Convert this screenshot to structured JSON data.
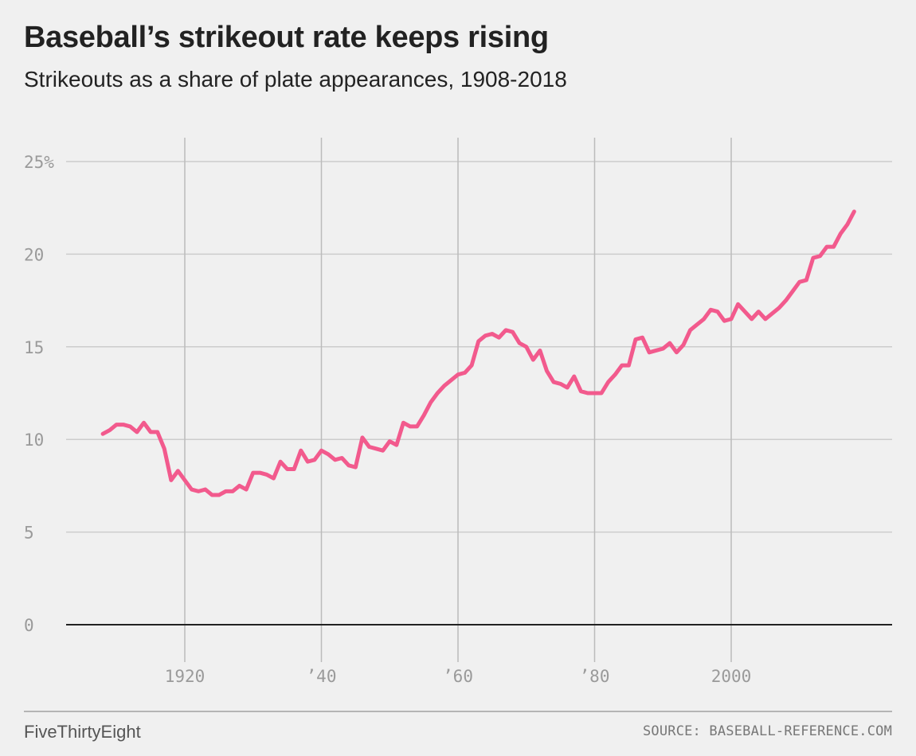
{
  "header": {
    "title": "Baseball’s strikeout rate keeps rising",
    "subtitle": "Strikeouts as a share of plate appearances, 1908-2018"
  },
  "footer": {
    "brand": "FiveThirtyEight",
    "source": "SOURCE: BASEBALL-REFERENCE.COM"
  },
  "colors": {
    "line": "#f25a8d",
    "grid": "#cccccc",
    "vgrid": "#bbbbbb",
    "zero_line": "#222222",
    "tick_text": "#9a9a9a",
    "background": "#f0f0f0"
  },
  "chart_data": {
    "type": "line",
    "title": "Baseball’s strikeout rate keeps rising",
    "subtitle": "Strikeouts as a share of plate appearances, 1908-2018",
    "xlabel": "",
    "ylabel": "",
    "xlim": [
      1908,
      2018
    ],
    "ylim": [
      0,
      25
    ],
    "grid": true,
    "x_ticks": [
      {
        "value": 1920,
        "label": "1920"
      },
      {
        "value": 1940,
        "label": "’40"
      },
      {
        "value": 1960,
        "label": "’60"
      },
      {
        "value": 1980,
        "label": "’80"
      },
      {
        "value": 2000,
        "label": "2000"
      }
    ],
    "y_ticks": [
      {
        "value": 0,
        "label": "0"
      },
      {
        "value": 5,
        "label": "5"
      },
      {
        "value": 10,
        "label": "10"
      },
      {
        "value": 15,
        "label": "15"
      },
      {
        "value": 20,
        "label": "20"
      },
      {
        "value": 25,
        "label": "25%"
      }
    ],
    "series": [
      {
        "x": [
          1908,
          1909,
          1910,
          1911,
          1912,
          1913,
          1914,
          1915,
          1916,
          1917,
          1918,
          1919,
          1920,
          1921,
          1922,
          1923,
          1924,
          1925,
          1926,
          1927,
          1928,
          1929,
          1930,
          1931,
          1932,
          1933,
          1934,
          1935,
          1936,
          1937,
          1938,
          1939,
          1940,
          1941,
          1942,
          1943,
          1944,
          1945,
          1946,
          1947,
          1948,
          1949,
          1950,
          1951,
          1952,
          1953,
          1954,
          1955,
          1956,
          1957,
          1958,
          1959,
          1960,
          1961,
          1962,
          1963,
          1964,
          1965,
          1966,
          1967,
          1968,
          1969,
          1970,
          1971,
          1972,
          1973,
          1974,
          1975,
          1976,
          1977,
          1978,
          1979,
          1980,
          1981,
          1982,
          1983,
          1984,
          1985,
          1986,
          1987,
          1988,
          1989,
          1990,
          1991,
          1992,
          1993,
          1994,
          1995,
          1996,
          1997,
          1998,
          1999,
          2000,
          2001,
          2002,
          2003,
          2004,
          2005,
          2006,
          2007,
          2008,
          2009,
          2010,
          2011,
          2012,
          2013,
          2014,
          2015,
          2016,
          2017,
          2018
        ],
        "values": [
          10.3,
          10.5,
          10.8,
          10.8,
          10.7,
          10.4,
          10.9,
          10.4,
          10.4,
          9.5,
          7.8,
          8.3,
          7.8,
          7.3,
          7.2,
          7.3,
          7.0,
          7.0,
          7.2,
          7.2,
          7.5,
          7.3,
          8.2,
          8.2,
          8.1,
          7.9,
          8.8,
          8.4,
          8.4,
          9.4,
          8.8,
          8.9,
          9.4,
          9.2,
          8.9,
          9.0,
          8.6,
          8.5,
          10.1,
          9.6,
          9.5,
          9.4,
          9.9,
          9.7,
          10.9,
          10.7,
          10.7,
          11.3,
          12.0,
          12.5,
          12.9,
          13.2,
          13.5,
          13.6,
          14.0,
          15.3,
          15.6,
          15.7,
          15.5,
          15.9,
          15.8,
          15.2,
          15.0,
          14.3,
          14.8,
          13.7,
          13.1,
          13.0,
          12.8,
          13.4,
          12.6,
          12.5,
          12.5,
          12.5,
          13.1,
          13.5,
          14.0,
          14.0,
          15.4,
          15.5,
          14.7,
          14.8,
          14.9,
          15.2,
          14.7,
          15.1,
          15.9,
          16.2,
          16.5,
          17.0,
          16.9,
          16.4,
          16.5,
          17.3,
          16.9,
          16.5,
          16.9,
          16.5,
          16.8,
          17.1,
          17.5,
          18.0,
          18.5,
          18.6,
          19.8,
          19.9,
          20.4,
          20.4,
          21.1,
          21.6,
          22.3
        ]
      }
    ]
  }
}
